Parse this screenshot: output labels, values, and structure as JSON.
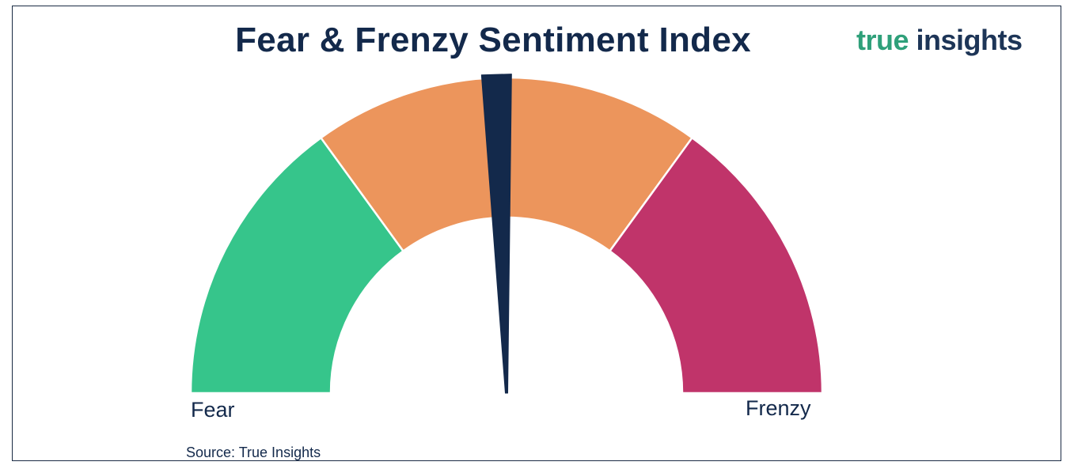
{
  "chart_data": {
    "type": "gauge",
    "title": "Fear & Frenzy Sentiment Index",
    "range": [
      0,
      100
    ],
    "bands": [
      {
        "from": 0,
        "to": 30,
        "color": "#36c58b"
      },
      {
        "from": 30,
        "to": 70,
        "color": "#ec955c"
      },
      {
        "from": 70,
        "to": 100,
        "color": "#c0346a"
      }
    ],
    "value": 49,
    "needle_color": "#13294b",
    "min_label": "Fear",
    "max_label": "Frenzy",
    "source": "Source: True Insights"
  },
  "logo": {
    "word1": "true",
    "word2": "insights"
  }
}
